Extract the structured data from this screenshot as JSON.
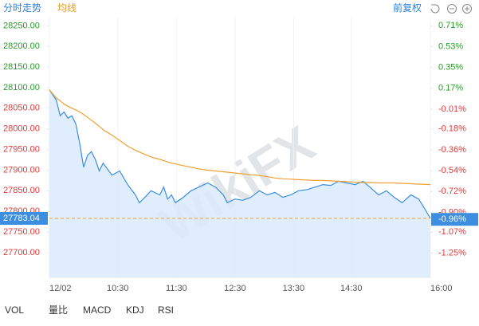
{
  "chart_data": {
    "type": "line",
    "watermark": "WikiFX",
    "toolbar_right": "前复权",
    "indicators": [
      "VOL",
      "量比",
      "MACD",
      "KDJ",
      "RSI"
    ],
    "x": [
      0,
      7,
      11,
      15,
      19,
      23,
      27,
      31,
      35,
      39,
      43,
      47,
      51,
      55,
      64,
      72,
      80,
      88,
      92,
      96,
      104,
      113,
      117,
      121,
      125,
      129,
      137,
      145,
      153,
      162,
      170,
      178,
      182,
      190,
      198,
      206,
      215,
      223,
      231,
      239,
      247,
      255,
      264,
      272,
      280,
      288,
      296,
      304,
      313,
      321,
      329,
      337,
      345,
      353,
      361,
      370,
      378,
      382,
      390
    ],
    "xlim": [
      0,
      390
    ],
    "xticks": [
      {
        "value": 0,
        "label": "12/02"
      },
      {
        "value": 70,
        "label": "10:30"
      },
      {
        "value": 130,
        "label": "11:30"
      },
      {
        "value": 190,
        "label": "12:30"
      },
      {
        "value": 250,
        "label": "13:30"
      },
      {
        "value": 309,
        "label": "14:30"
      },
      {
        "value": 390,
        "label": "16:00"
      }
    ],
    "ylim": [
      27640,
      28270
    ],
    "yticks": [
      {
        "value": 28250,
        "label": "28250.00"
      },
      {
        "value": 28200,
        "label": "28200.00"
      },
      {
        "value": 28150,
        "label": "28150.00"
      },
      {
        "value": 28100,
        "label": "28100.00"
      },
      {
        "value": 28050,
        "label": "28050.00"
      },
      {
        "value": 28000,
        "label": "28000.00"
      },
      {
        "value": 27950,
        "label": "27950.00"
      },
      {
        "value": 27900,
        "label": "27900.00"
      },
      {
        "value": 27850,
        "label": "27850.00"
      },
      {
        "value": 27800,
        "label": "27800.00"
      },
      {
        "value": 27750,
        "label": "27750.00"
      },
      {
        "value": 27700,
        "label": "27700.00"
      }
    ],
    "y2lim": [
      -1.46,
      0.78
    ],
    "y2ticks": [
      {
        "value": 0.71,
        "label": "0.71%"
      },
      {
        "value": 0.53,
        "label": "0.53%"
      },
      {
        "value": 0.35,
        "label": "0.35%"
      },
      {
        "value": 0.17,
        "label": "0.17%"
      },
      {
        "value": -0.01,
        "label": "-0.01%"
      },
      {
        "value": -0.18,
        "label": "-0.18%"
      },
      {
        "value": -0.36,
        "label": "-0.36%"
      },
      {
        "value": -0.54,
        "label": "-0.54%"
      },
      {
        "value": -0.72,
        "label": "-0.72%"
      },
      {
        "value": -0.9,
        "label": "-0.90%"
      },
      {
        "value": -1.07,
        "label": "-1.07%"
      },
      {
        "value": -1.25,
        "label": "-1.25%"
      }
    ],
    "up_color": "#2a9a2a",
    "down_color": "#e03a3a",
    "xgrid": true,
    "last_price": {
      "value": 27783.04,
      "label": "27783.04"
    },
    "last_change": {
      "value": -0.96,
      "label": "-0.96%"
    },
    "series": [
      {
        "name": "分时走势",
        "color": "#3b8ee0",
        "fill": "#d9eafb",
        "values": [
          28095,
          28070,
          28032,
          28041,
          28026,
          28032,
          28012,
          27965,
          27907,
          27936,
          27945,
          27926,
          27898,
          27917,
          27888,
          27898,
          27865,
          27840,
          27821,
          27830,
          27850,
          27840,
          27859,
          27830,
          27840,
          27821,
          27834,
          27850,
          27859,
          27869,
          27859,
          27840,
          27821,
          27830,
          27827,
          27834,
          27850,
          27840,
          27846,
          27834,
          27840,
          27850,
          27853,
          27859,
          27865,
          27863,
          27873,
          27869,
          27865,
          27873,
          27857,
          27840,
          27850,
          27834,
          27821,
          27840,
          27830,
          27815,
          27783.04
        ]
      },
      {
        "name": "均线",
        "color": "#f0a030",
        "values": [
          28095,
          28075,
          28068,
          28060,
          28055,
          28050,
          28046,
          28041,
          28035,
          28028,
          28021,
          28014,
          28006,
          27998,
          27985,
          27972,
          27958,
          27948,
          27944,
          27940,
          27932,
          27926,
          27923,
          27920,
          27917,
          27915,
          27911,
          27907,
          27903,
          27900,
          27898,
          27896,
          27895,
          27893,
          27891,
          27889,
          27887,
          27884,
          27881,
          27879,
          27878,
          27877,
          27876,
          27875,
          27875,
          27874,
          27873,
          27872,
          27871,
          27870,
          27870,
          27869,
          27869,
          27869,
          27868,
          27867,
          27866,
          27866,
          27865
        ]
      }
    ]
  }
}
